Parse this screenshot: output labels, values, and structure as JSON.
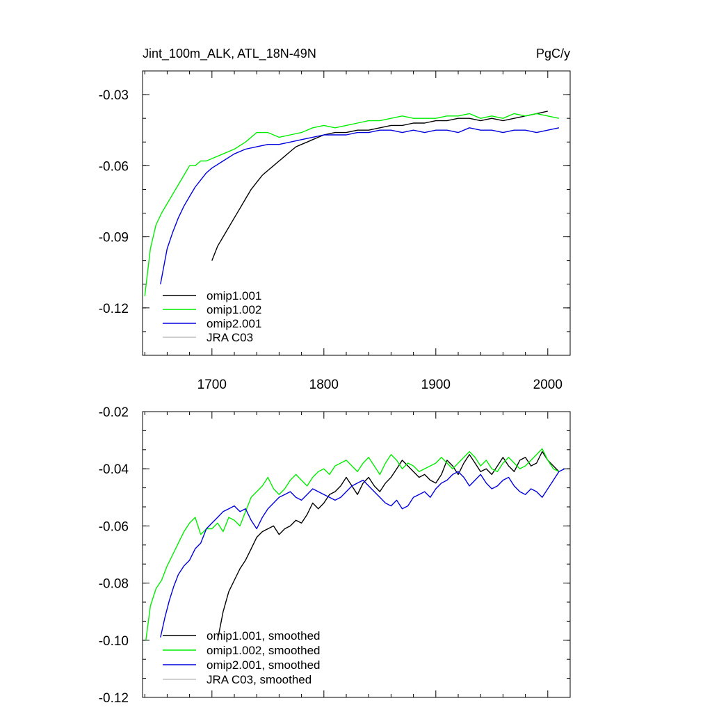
{
  "chart_data": [
    {
      "type": "line",
      "title": "Jint_100m_ALK, ATL_18N-49N",
      "units": "PgC/y",
      "xlim": [
        1638,
        2020
      ],
      "ylim": [
        -0.14,
        -0.02
      ],
      "xticks": [
        1700,
        1800,
        1900,
        2000
      ],
      "xtick_labels": [
        "1700",
        "1800",
        "1900",
        "2000"
      ],
      "yticks": [
        -0.12,
        -0.09,
        -0.06,
        -0.03
      ],
      "ytick_labels": [
        "-0.12",
        "-0.09",
        "-0.06",
        "-0.03"
      ],
      "legend_position": "bottom-left",
      "series": [
        {
          "name": "omip1.001",
          "color": "#000000",
          "x": [
            1700,
            1705,
            1710,
            1715,
            1720,
            1725,
            1730,
            1735,
            1740,
            1745,
            1750,
            1755,
            1760,
            1765,
            1770,
            1775,
            1780,
            1785,
            1790,
            1795,
            1800,
            1810,
            1820,
            1830,
            1840,
            1850,
            1860,
            1870,
            1880,
            1890,
            1900,
            1910,
            1920,
            1930,
            1940,
            1950,
            1960,
            1970,
            1980,
            1990,
            2000
          ],
          "values": [
            -0.1,
            -0.094,
            -0.09,
            -0.086,
            -0.082,
            -0.078,
            -0.074,
            -0.07,
            -0.067,
            -0.064,
            -0.062,
            -0.06,
            -0.058,
            -0.056,
            -0.054,
            -0.052,
            -0.051,
            -0.05,
            -0.049,
            -0.048,
            -0.047,
            -0.046,
            -0.046,
            -0.045,
            -0.045,
            -0.044,
            -0.043,
            -0.043,
            -0.042,
            -0.042,
            -0.041,
            -0.041,
            -0.04,
            -0.04,
            -0.041,
            -0.04,
            -0.041,
            -0.04,
            -0.039,
            -0.038,
            -0.037
          ]
        },
        {
          "name": "omip1.002",
          "color": "#00ee00",
          "x": [
            1640,
            1645,
            1650,
            1655,
            1660,
            1665,
            1670,
            1675,
            1680,
            1685,
            1690,
            1695,
            1700,
            1710,
            1720,
            1730,
            1740,
            1750,
            1760,
            1770,
            1780,
            1790,
            1800,
            1810,
            1820,
            1830,
            1840,
            1850,
            1860,
            1870,
            1880,
            1890,
            1900,
            1910,
            1920,
            1930,
            1940,
            1950,
            1960,
            1970,
            1980,
            1990,
            2000,
            2010
          ],
          "values": [
            -0.115,
            -0.095,
            -0.085,
            -0.08,
            -0.076,
            -0.072,
            -0.068,
            -0.064,
            -0.06,
            -0.06,
            -0.058,
            -0.058,
            -0.057,
            -0.055,
            -0.053,
            -0.05,
            -0.046,
            -0.046,
            -0.048,
            -0.047,
            -0.046,
            -0.044,
            -0.043,
            -0.044,
            -0.043,
            -0.042,
            -0.041,
            -0.041,
            -0.04,
            -0.039,
            -0.04,
            -0.04,
            -0.04,
            -0.039,
            -0.039,
            -0.038,
            -0.04,
            -0.039,
            -0.04,
            -0.038,
            -0.039,
            -0.038,
            -0.039,
            -0.04
          ]
        },
        {
          "name": "omip2.001",
          "color": "#0000dd",
          "x": [
            1654,
            1660,
            1665,
            1670,
            1675,
            1680,
            1685,
            1690,
            1695,
            1700,
            1710,
            1720,
            1730,
            1740,
            1750,
            1760,
            1770,
            1780,
            1790,
            1800,
            1810,
            1820,
            1830,
            1840,
            1850,
            1860,
            1870,
            1880,
            1890,
            1900,
            1910,
            1920,
            1930,
            1940,
            1950,
            1960,
            1970,
            1980,
            1990,
            2000,
            2010
          ],
          "values": [
            -0.11,
            -0.095,
            -0.088,
            -0.082,
            -0.077,
            -0.073,
            -0.069,
            -0.066,
            -0.063,
            -0.061,
            -0.058,
            -0.055,
            -0.053,
            -0.052,
            -0.051,
            -0.051,
            -0.05,
            -0.049,
            -0.048,
            -0.047,
            -0.047,
            -0.047,
            -0.046,
            -0.046,
            -0.045,
            -0.045,
            -0.046,
            -0.045,
            -0.046,
            -0.045,
            -0.045,
            -0.046,
            -0.044,
            -0.045,
            -0.045,
            -0.046,
            -0.045,
            -0.045,
            -0.046,
            -0.045,
            -0.044
          ]
        },
        {
          "name": "JRA C03",
          "color": "#c0c0c0",
          "x": [],
          "values": []
        }
      ]
    },
    {
      "type": "line",
      "title": "",
      "xlim": [
        1638,
        2020
      ],
      "ylim": [
        -0.12,
        -0.02
      ],
      "xticks": [
        1700,
        1800,
        1900,
        2000
      ],
      "xtick_labels": [],
      "yticks": [
        -0.12,
        -0.1,
        -0.08,
        -0.06,
        -0.04,
        -0.02
      ],
      "ytick_labels": [
        "-0.12",
        "-0.10",
        "-0.08",
        "-0.06",
        "-0.04",
        "-0.02"
      ],
      "legend_position": "bottom-left",
      "series": [
        {
          "name": "omip1.001, smoothed",
          "color": "#000000",
          "x": [
            1705,
            1710,
            1715,
            1720,
            1725,
            1730,
            1735,
            1740,
            1745,
            1750,
            1755,
            1760,
            1765,
            1770,
            1775,
            1780,
            1785,
            1790,
            1795,
            1800,
            1805,
            1810,
            1815,
            1820,
            1825,
            1830,
            1835,
            1840,
            1845,
            1850,
            1855,
            1860,
            1865,
            1870,
            1875,
            1880,
            1885,
            1890,
            1895,
            1900,
            1905,
            1910,
            1915,
            1920,
            1925,
            1930,
            1935,
            1940,
            1945,
            1950,
            1955,
            1960,
            1965,
            1970,
            1975,
            1980,
            1985,
            1990,
            1995,
            2000,
            2005,
            2010
          ],
          "values": [
            -0.1,
            -0.09,
            -0.083,
            -0.079,
            -0.075,
            -0.072,
            -0.068,
            -0.064,
            -0.062,
            -0.061,
            -0.06,
            -0.063,
            -0.061,
            -0.06,
            -0.058,
            -0.059,
            -0.056,
            -0.052,
            -0.054,
            -0.052,
            -0.049,
            -0.048,
            -0.046,
            -0.043,
            -0.046,
            -0.049,
            -0.045,
            -0.043,
            -0.046,
            -0.048,
            -0.045,
            -0.043,
            -0.04,
            -0.037,
            -0.039,
            -0.041,
            -0.043,
            -0.042,
            -0.044,
            -0.045,
            -0.042,
            -0.037,
            -0.039,
            -0.042,
            -0.038,
            -0.035,
            -0.038,
            -0.041,
            -0.04,
            -0.042,
            -0.039,
            -0.036,
            -0.039,
            -0.041,
            -0.037,
            -0.036,
            -0.039,
            -0.038,
            -0.034,
            -0.037,
            -0.039,
            -0.041
          ]
        },
        {
          "name": "omip1.002, smoothed",
          "color": "#00ee00",
          "x": [
            1641,
            1645,
            1650,
            1655,
            1660,
            1665,
            1670,
            1675,
            1680,
            1685,
            1690,
            1695,
            1700,
            1705,
            1710,
            1715,
            1720,
            1725,
            1730,
            1735,
            1740,
            1745,
            1750,
            1755,
            1760,
            1765,
            1770,
            1775,
            1780,
            1785,
            1790,
            1795,
            1800,
            1805,
            1810,
            1815,
            1820,
            1825,
            1830,
            1835,
            1840,
            1845,
            1850,
            1855,
            1860,
            1865,
            1870,
            1875,
            1880,
            1885,
            1890,
            1895,
            1900,
            1905,
            1910,
            1915,
            1920,
            1925,
            1930,
            1935,
            1940,
            1945,
            1950,
            1955,
            1960,
            1965,
            1970,
            1975,
            1980,
            1985,
            1990,
            1995,
            2000,
            2005,
            2010
          ],
          "values": [
            -0.1,
            -0.088,
            -0.082,
            -0.079,
            -0.074,
            -0.07,
            -0.066,
            -0.062,
            -0.059,
            -0.057,
            -0.063,
            -0.061,
            -0.061,
            -0.059,
            -0.062,
            -0.057,
            -0.058,
            -0.06,
            -0.055,
            -0.05,
            -0.048,
            -0.046,
            -0.043,
            -0.047,
            -0.049,
            -0.047,
            -0.044,
            -0.042,
            -0.044,
            -0.046,
            -0.043,
            -0.041,
            -0.04,
            -0.042,
            -0.039,
            -0.038,
            -0.037,
            -0.039,
            -0.041,
            -0.038,
            -0.036,
            -0.039,
            -0.042,
            -0.038,
            -0.035,
            -0.037,
            -0.04,
            -0.038,
            -0.039,
            -0.041,
            -0.04,
            -0.039,
            -0.038,
            -0.036,
            -0.038,
            -0.04,
            -0.038,
            -0.036,
            -0.034,
            -0.036,
            -0.039,
            -0.037,
            -0.04,
            -0.041,
            -0.038,
            -0.036,
            -0.038,
            -0.04,
            -0.039,
            -0.037,
            -0.035,
            -0.033,
            -0.037,
            -0.04,
            -0.041
          ]
        },
        {
          "name": "omip2.001, smoothed",
          "color": "#0000dd",
          "x": [
            1654,
            1658,
            1662,
            1666,
            1670,
            1675,
            1680,
            1685,
            1690,
            1695,
            1700,
            1705,
            1710,
            1715,
            1720,
            1725,
            1730,
            1735,
            1740,
            1745,
            1750,
            1755,
            1760,
            1765,
            1770,
            1775,
            1780,
            1785,
            1790,
            1795,
            1800,
            1805,
            1810,
            1815,
            1820,
            1825,
            1830,
            1835,
            1840,
            1845,
            1850,
            1855,
            1860,
            1865,
            1870,
            1875,
            1880,
            1885,
            1890,
            1895,
            1900,
            1905,
            1910,
            1915,
            1920,
            1925,
            1930,
            1935,
            1940,
            1945,
            1950,
            1955,
            1960,
            1965,
            1970,
            1975,
            1980,
            1985,
            1990,
            1995,
            2000,
            2005,
            2010,
            2015
          ],
          "values": [
            -0.099,
            -0.092,
            -0.086,
            -0.081,
            -0.077,
            -0.074,
            -0.072,
            -0.068,
            -0.066,
            -0.061,
            -0.059,
            -0.057,
            -0.055,
            -0.054,
            -0.053,
            -0.055,
            -0.054,
            -0.058,
            -0.061,
            -0.057,
            -0.054,
            -0.052,
            -0.05,
            -0.049,
            -0.048,
            -0.05,
            -0.051,
            -0.049,
            -0.047,
            -0.048,
            -0.049,
            -0.05,
            -0.051,
            -0.05,
            -0.048,
            -0.046,
            -0.045,
            -0.044,
            -0.046,
            -0.048,
            -0.05,
            -0.052,
            -0.053,
            -0.051,
            -0.054,
            -0.053,
            -0.05,
            -0.049,
            -0.048,
            -0.05,
            -0.047,
            -0.045,
            -0.044,
            -0.042,
            -0.041,
            -0.043,
            -0.046,
            -0.044,
            -0.042,
            -0.045,
            -0.047,
            -0.046,
            -0.044,
            -0.043,
            -0.046,
            -0.048,
            -0.049,
            -0.047,
            -0.048,
            -0.05,
            -0.047,
            -0.044,
            -0.041,
            -0.04
          ]
        },
        {
          "name": "JRA C03, smoothed",
          "color": "#c0c0c0",
          "x": [],
          "values": []
        }
      ]
    }
  ]
}
